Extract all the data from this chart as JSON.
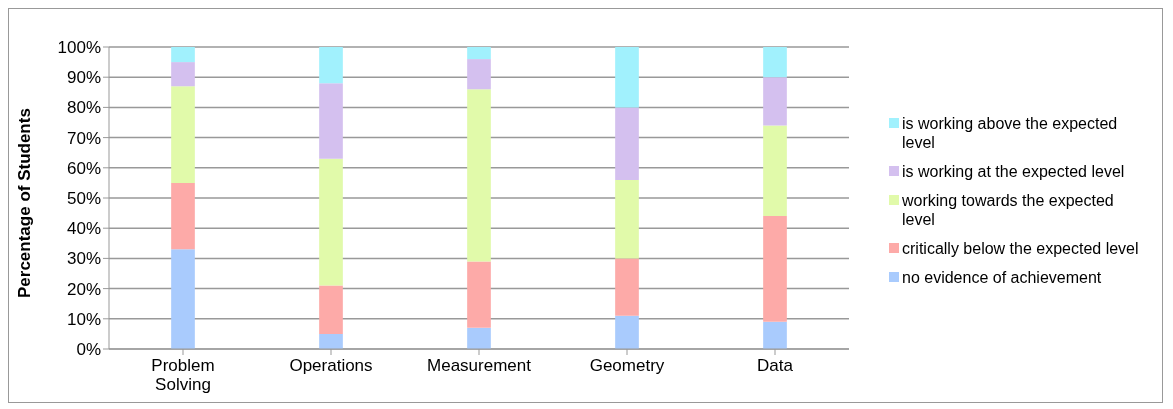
{
  "chart_data": {
    "type": "bar",
    "stacked": true,
    "ylabel": "Percentage of Students",
    "categories": [
      "Problem Solving",
      "Operations",
      "Measurement",
      "Geometry",
      "Data"
    ],
    "series": [
      {
        "name": "no evidence of achievement",
        "color": "#a9cbfd",
        "values": [
          33,
          5,
          7,
          11,
          9
        ]
      },
      {
        "name": "critically below the expected level",
        "color": "#fdaaa8",
        "values": [
          22,
          16,
          22,
          19,
          35
        ]
      },
      {
        "name": "working towards the expected level",
        "color": "#e1faaa",
        "values": [
          32,
          42,
          57,
          26,
          30
        ]
      },
      {
        "name": "is working at the expected level",
        "color": "#d4c0ef",
        "values": [
          8,
          25,
          10,
          24,
          16
        ]
      },
      {
        "name": "is working above the expected level",
        "color": "#a1f1fd",
        "values": [
          5,
          12,
          4,
          20,
          10
        ]
      }
    ],
    "ylim": [
      0,
      100
    ],
    "yticks": [
      {
        "value": 0,
        "label": "0%"
      },
      {
        "value": 10,
        "label": "10%"
      },
      {
        "value": 20,
        "label": "20%"
      },
      {
        "value": 30,
        "label": "30%"
      },
      {
        "value": 40,
        "label": "40%"
      },
      {
        "value": 50,
        "label": "50%"
      },
      {
        "value": 60,
        "label": "60%"
      },
      {
        "value": 70,
        "label": "70%"
      },
      {
        "value": 80,
        "label": "80%"
      },
      {
        "value": 90,
        "label": "90%"
      },
      {
        "value": 100,
        "label": "100%"
      }
    ],
    "grid": "y",
    "legend": "right"
  }
}
